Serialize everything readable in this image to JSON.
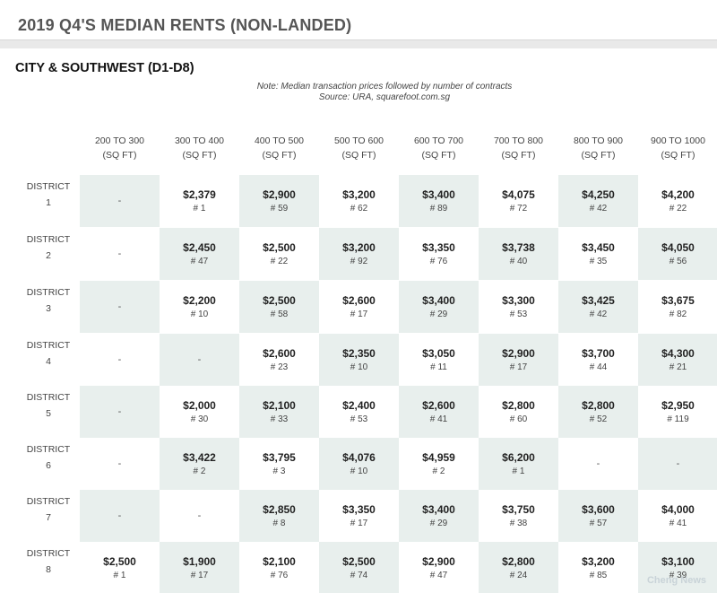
{
  "title": "2019 Q4'S MEDIAN RENTS (NON-LANDED)",
  "section": "CITY & SOUTHWEST (D1-D8)",
  "note_line1": "Note: Median transaction prices followed by number of contracts",
  "note_line2": "Source: URA, squarefoot.com.sg",
  "columns": [
    {
      "range": "200 TO 300",
      "unit": "(SQ FT)"
    },
    {
      "range": "300 TO 400",
      "unit": "(SQ FT)"
    },
    {
      "range": "400 TO 500",
      "unit": "(SQ FT)"
    },
    {
      "range": "500 TO 600",
      "unit": "(SQ FT)"
    },
    {
      "range": "600 TO 700",
      "unit": "(SQ FT)"
    },
    {
      "range": "700 TO 800",
      "unit": "(SQ FT)"
    },
    {
      "range": "800 TO 900",
      "unit": "(SQ FT)"
    },
    {
      "range": "900 TO 1000",
      "unit": "(SQ FT)"
    }
  ],
  "rows": [
    {
      "label": "DISTRICT",
      "num": "1",
      "cells": [
        {
          "price": "-",
          "count": ""
        },
        {
          "price": "$2,379",
          "count": "# 1"
        },
        {
          "price": "$2,900",
          "count": "# 59"
        },
        {
          "price": "$3,200",
          "count": "# 62"
        },
        {
          "price": "$3,400",
          "count": "# 89"
        },
        {
          "price": "$4,075",
          "count": "# 72"
        },
        {
          "price": "$4,250",
          "count": "# 42"
        },
        {
          "price": "$4,200",
          "count": "# 22"
        }
      ]
    },
    {
      "label": "DISTRICT",
      "num": "2",
      "cells": [
        {
          "price": "-",
          "count": ""
        },
        {
          "price": "$2,450",
          "count": "# 47"
        },
        {
          "price": "$2,500",
          "count": "# 22"
        },
        {
          "price": "$3,200",
          "count": "# 92"
        },
        {
          "price": "$3,350",
          "count": "# 76"
        },
        {
          "price": "$3,738",
          "count": "# 40"
        },
        {
          "price": "$3,450",
          "count": "# 35"
        },
        {
          "price": "$4,050",
          "count": "# 56"
        }
      ]
    },
    {
      "label": "DISTRICT",
      "num": "3",
      "cells": [
        {
          "price": "-",
          "count": ""
        },
        {
          "price": "$2,200",
          "count": "# 10"
        },
        {
          "price": "$2,500",
          "count": "# 58"
        },
        {
          "price": "$2,600",
          "count": "# 17"
        },
        {
          "price": "$3,400",
          "count": "# 29"
        },
        {
          "price": "$3,300",
          "count": "# 53"
        },
        {
          "price": "$3,425",
          "count": "# 42"
        },
        {
          "price": "$3,675",
          "count": "# 82"
        }
      ]
    },
    {
      "label": "DISTRICT",
      "num": "4",
      "cells": [
        {
          "price": "-",
          "count": ""
        },
        {
          "price": "-",
          "count": ""
        },
        {
          "price": "$2,600",
          "count": "# 23"
        },
        {
          "price": "$2,350",
          "count": "# 10"
        },
        {
          "price": "$3,050",
          "count": "# 11"
        },
        {
          "price": "$2,900",
          "count": "# 17"
        },
        {
          "price": "$3,700",
          "count": "# 44"
        },
        {
          "price": "$4,300",
          "count": "# 21"
        }
      ]
    },
    {
      "label": "DISTRICT",
      "num": "5",
      "cells": [
        {
          "price": "-",
          "count": ""
        },
        {
          "price": "$2,000",
          "count": "# 30"
        },
        {
          "price": "$2,100",
          "count": "# 33"
        },
        {
          "price": "$2,400",
          "count": "# 53"
        },
        {
          "price": "$2,600",
          "count": "# 41"
        },
        {
          "price": "$2,800",
          "count": "# 60"
        },
        {
          "price": "$2,800",
          "count": "# 52"
        },
        {
          "price": "$2,950",
          "count": "# 119"
        }
      ]
    },
    {
      "label": "DISTRICT",
      "num": "6",
      "cells": [
        {
          "price": "-",
          "count": ""
        },
        {
          "price": "$3,422",
          "count": "# 2"
        },
        {
          "price": "$3,795",
          "count": "# 3"
        },
        {
          "price": "$4,076",
          "count": "# 10"
        },
        {
          "price": "$4,959",
          "count": "# 2"
        },
        {
          "price": "$6,200",
          "count": "# 1"
        },
        {
          "price": "-",
          "count": ""
        },
        {
          "price": "-",
          "count": ""
        }
      ]
    },
    {
      "label": "DISTRICT",
      "num": "7",
      "cells": [
        {
          "price": "-",
          "count": ""
        },
        {
          "price": "-",
          "count": ""
        },
        {
          "price": "$2,850",
          "count": "# 8"
        },
        {
          "price": "$3,350",
          "count": "# 17"
        },
        {
          "price": "$3,400",
          "count": "# 29"
        },
        {
          "price": "$3,750",
          "count": "# 38"
        },
        {
          "price": "$3,600",
          "count": "# 57"
        },
        {
          "price": "$4,000",
          "count": "# 41"
        }
      ]
    },
    {
      "label": "DISTRICT",
      "num": "8",
      "cells": [
        {
          "price": "$2,500",
          "count": "# 1"
        },
        {
          "price": "$1,900",
          "count": "# 17"
        },
        {
          "price": "$2,100",
          "count": "# 76"
        },
        {
          "price": "$2,500",
          "count": "# 74"
        },
        {
          "price": "$2,900",
          "count": "# 47"
        },
        {
          "price": "$2,800",
          "count": "# 24"
        },
        {
          "price": "$3,200",
          "count": "# 85"
        },
        {
          "price": "$3,100",
          "count": "# 39"
        }
      ]
    }
  ],
  "watermark": "Cheng News",
  "colors": {
    "shade": "#e8efed",
    "title": "#555555",
    "rule": "#e9e9e9"
  }
}
